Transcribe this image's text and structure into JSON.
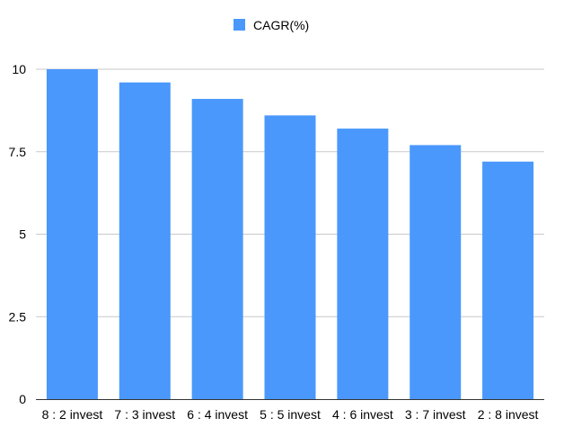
{
  "chart_data": {
    "type": "bar",
    "categories": [
      "8 : 2 invest",
      "7 : 3 invest",
      "6 : 4 invest",
      "5 : 5 invest",
      "4 : 6 invest",
      "3 : 7 invest",
      "2 : 8 invest"
    ],
    "series": [
      {
        "name": "CAGR(%)",
        "values": [
          10,
          9.6,
          9.1,
          8.6,
          8.2,
          7.7,
          7.2
        ],
        "color": "#4a98fc"
      }
    ],
    "ylim": [
      0,
      10
    ],
    "yticks": [
      0,
      2.5,
      5,
      7.5,
      10
    ],
    "ytick_labels": [
      "0",
      "2.5",
      "5",
      "7.5",
      "10"
    ],
    "legend_position": "top-center",
    "grid": true
  }
}
